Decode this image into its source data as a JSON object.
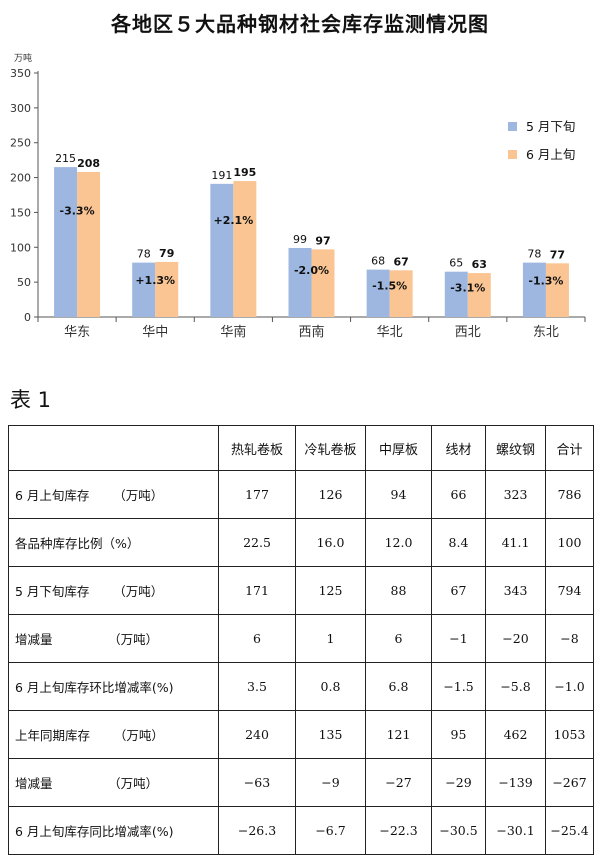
{
  "chart_data": {
    "type": "bar",
    "title": "各地区５大品种钢材社会库存监测情况图",
    "unit_label": "万吨",
    "categories": [
      "华东",
      "华中",
      "华南",
      "西南",
      "华北",
      "西北",
      "东北"
    ],
    "series": [
      {
        "name": "5 月下旬",
        "values": [
          215,
          78,
          191,
          99,
          68,
          65,
          78
        ],
        "color": "#9db7e0"
      },
      {
        "name": "6 月上旬",
        "values": [
          208,
          79,
          195,
          97,
          67,
          63,
          77
        ],
        "color": "#fac592"
      }
    ],
    "change_labels": [
      "-3.3%",
      "+1.3%",
      "+2.1%",
      "-2.0%",
      "-1.5%",
      "-3.1%",
      "-1.3%"
    ],
    "ylim": [
      0,
      350
    ],
    "yticks": [
      0,
      50,
      100,
      150,
      200,
      250,
      300,
      350
    ],
    "grid": false,
    "legend_position": "right"
  },
  "table": {
    "caption": "表 1",
    "headers": [
      "",
      "热轧卷板",
      "冷轧卷板",
      "中厚板",
      "线材",
      "螺纹钢",
      "合计"
    ],
    "rows": [
      [
        "6 月上旬库存      （万吨）",
        "177",
        "126",
        "94",
        "66",
        "323",
        "786"
      ],
      [
        "各品种库存比例（%）",
        "22.5",
        "16.0",
        "12.0",
        "8.4",
        "41.1",
        "100"
      ],
      [
        "5 月下旬库存      （万吨）",
        "171",
        "125",
        "88",
        "67",
        "343",
        "794"
      ],
      [
        "增减量              （万吨）",
        "6",
        "1",
        "6",
        "−1",
        "−20",
        "−8"
      ],
      [
        "6 月上旬库存环比增减率(%)",
        "3.5",
        "0.8",
        "6.8",
        "−1.5",
        "−5.8",
        "−1.0"
      ],
      [
        "上年同期库存      （万吨）",
        "240",
        "135",
        "121",
        "95",
        "462",
        "1053"
      ],
      [
        "增减量              （万吨）",
        "−63",
        "−9",
        "−27",
        "−29",
        "−139",
        "−267"
      ],
      [
        "6 月上旬库存同比增减率(%)",
        "−26.3",
        "−6.7",
        "−22.3",
        "−30.5",
        "−30.1",
        "−25.4"
      ]
    ]
  }
}
